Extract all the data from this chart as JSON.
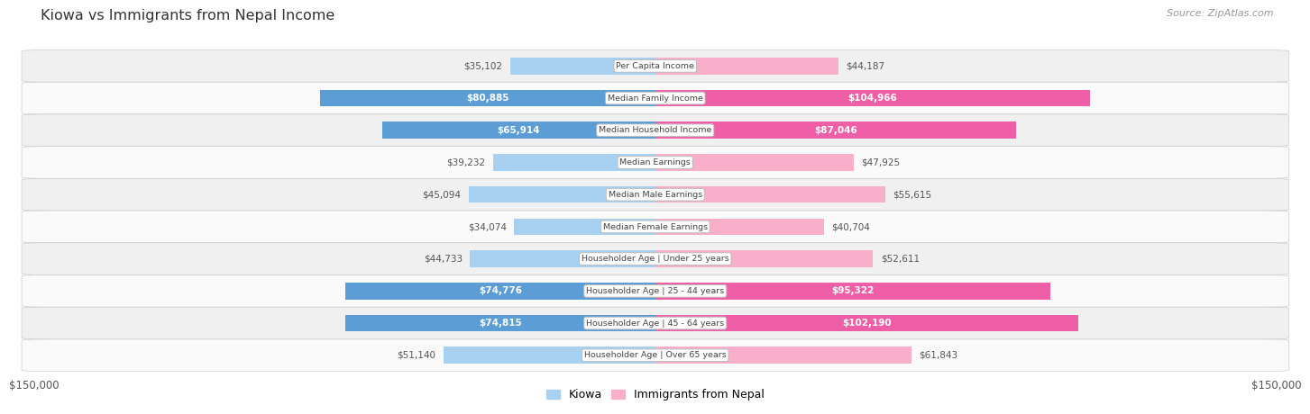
{
  "title": "Kiowa vs Immigrants from Nepal Income",
  "source": "Source: ZipAtlas.com",
  "categories": [
    "Per Capita Income",
    "Median Family Income",
    "Median Household Income",
    "Median Earnings",
    "Median Male Earnings",
    "Median Female Earnings",
    "Householder Age | Under 25 years",
    "Householder Age | 25 - 44 years",
    "Householder Age | 45 - 64 years",
    "Householder Age | Over 65 years"
  ],
  "kiowa_values": [
    35102,
    80885,
    65914,
    39232,
    45094,
    34074,
    44733,
    74776,
    74815,
    51140
  ],
  "nepal_values": [
    44187,
    104966,
    87046,
    47925,
    55615,
    40704,
    52611,
    95322,
    102190,
    61843
  ],
  "kiowa_light_color": "#A8D0F0",
  "kiowa_dark_color": "#5B9DD4",
  "nepal_light_color": "#F9AECA",
  "nepal_dark_color": "#EF5FA7",
  "max_value": 150000,
  "white_label_threshold_kiowa": 55000,
  "white_label_threshold_nepal": 75000,
  "row_color_even": "#f0f0f0",
  "row_color_odd": "#fafafa",
  "bg_color": "#ffffff",
  "title_color": "#333333",
  "label_outside_color": "#555555",
  "label_white_color": "#ffffff",
  "center_label_color": "#444444",
  "legend_label_kiowa": "Kiowa",
  "legend_label_nepal": "Immigrants from Nepal"
}
